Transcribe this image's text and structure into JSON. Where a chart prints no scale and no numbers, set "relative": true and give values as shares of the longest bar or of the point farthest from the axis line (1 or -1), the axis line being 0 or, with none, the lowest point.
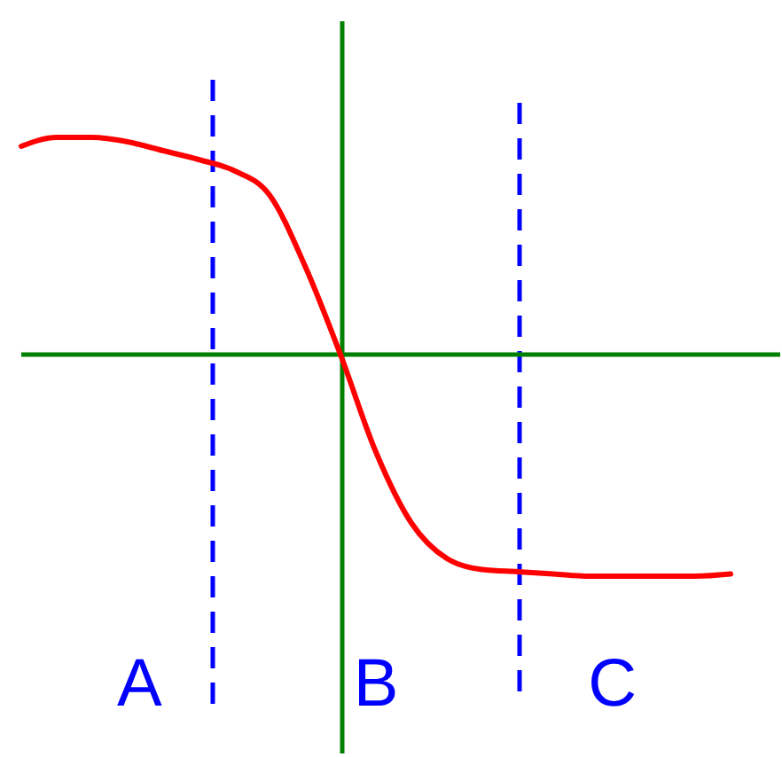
{
  "chart_data": {
    "type": "line",
    "relative": true,
    "categories": [
      null,
      null,
      null,
      null,
      null,
      null,
      null,
      null,
      null,
      null,
      null,
      null,
      null,
      null,
      null,
      null,
      null,
      null,
      null,
      null,
      null
    ],
    "series": [
      {
        "color": "#ff0000",
        "values": [
          0.94,
          0.98,
          0.98,
          0.96,
          0.92,
          0.88,
          0.83,
          0.72,
          0.4,
          0,
          -0.44,
          -0.76,
          -0.92,
          -0.97,
          -0.98,
          -0.99,
          -1,
          -1,
          -1,
          -1,
          -0.99
        ]
      }
    ],
    "ref_lines": [
      {
        "axis": "y",
        "value": 0,
        "color": "#008000",
        "line_style": "solid"
      }
    ],
    "annotations": [
      "A",
      "B",
      "C"
    ]
  }
}
